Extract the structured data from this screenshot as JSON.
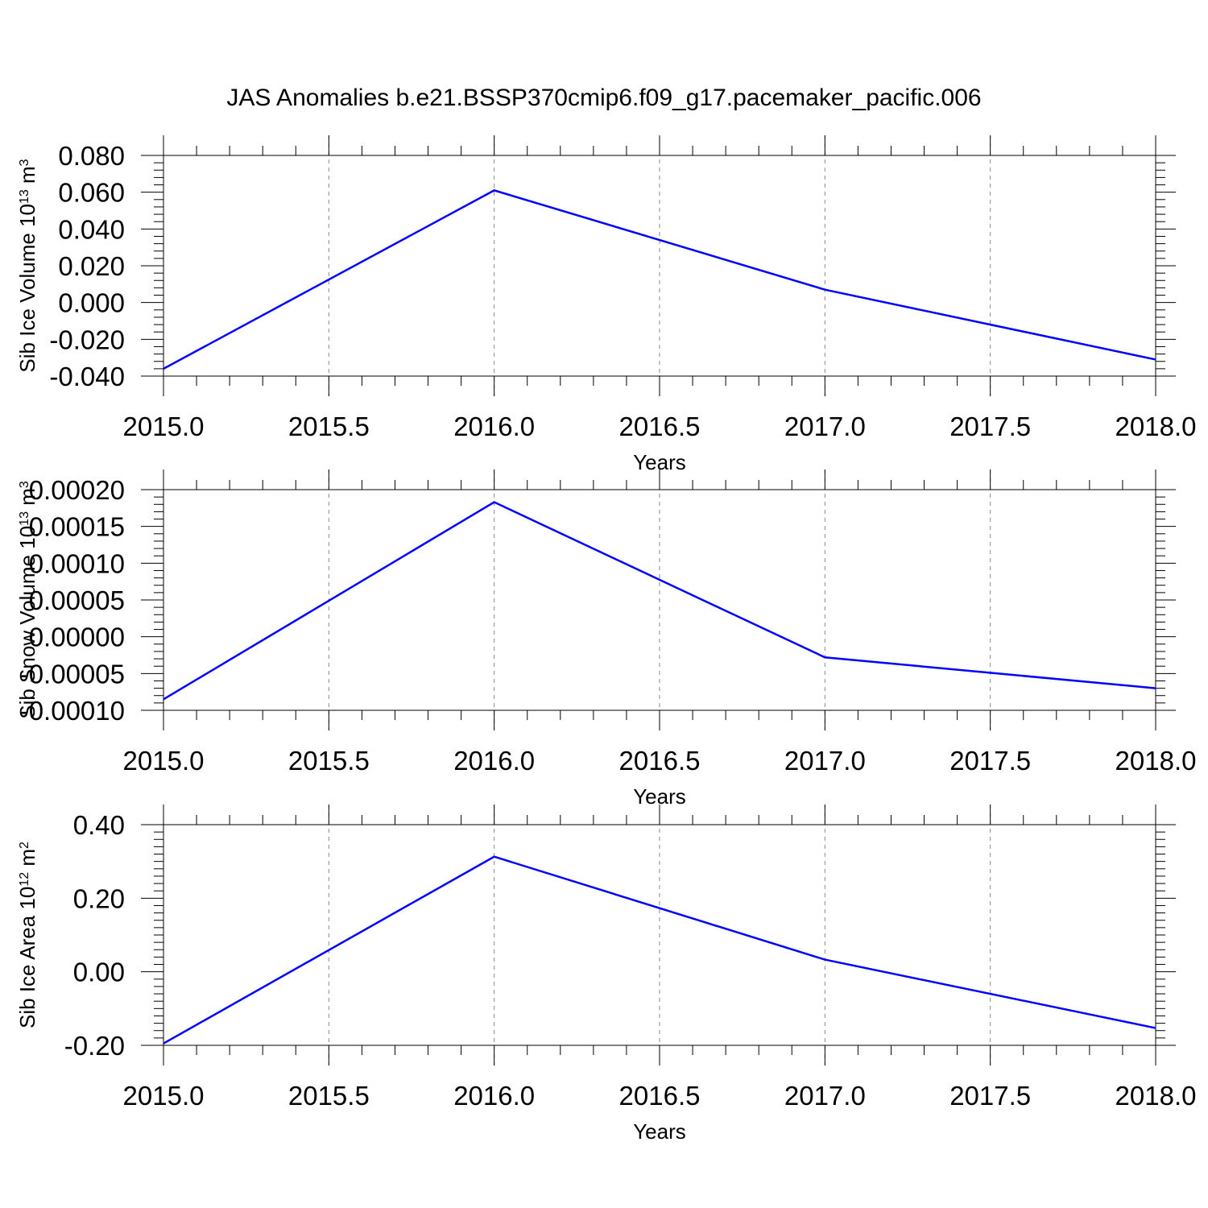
{
  "title": "JAS Anomalies b.e21.BSSP370cmip6.f09_g17.pacemaker_pacific.006",
  "colors": {
    "series": "#0000ff",
    "axis": "#000000",
    "grid": "#888888"
  },
  "chart_data": [
    {
      "type": "line",
      "ylabel_main": "Sib Ice Volume 10",
      "ylabel_exp": "13",
      "ylabel_unit": " m",
      "ylabel_unit_exp": "3",
      "xlabel": "Years",
      "xlim": [
        2015.0,
        2018.0
      ],
      "ylim": [
        -0.04,
        0.08
      ],
      "x_ticks": [
        "2015.0",
        "2015.5",
        "2016.0",
        "2016.5",
        "2017.0",
        "2017.5",
        "2018.0"
      ],
      "y_ticks": [
        "-0.040",
        "-0.020",
        "0.000",
        "0.020",
        "0.040",
        "0.060",
        "0.080"
      ],
      "x": [
        2015,
        2016,
        2017,
        2018
      ],
      "values": [
        -0.036,
        0.061,
        0.007,
        -0.031
      ]
    },
    {
      "type": "line",
      "ylabel_main": "Sib Snow Volume 10",
      "ylabel_exp": "13",
      "ylabel_unit": " m",
      "ylabel_unit_exp": "3",
      "xlabel": "Years",
      "xlim": [
        2015.0,
        2018.0
      ],
      "ylim": [
        -0.0001,
        0.0002
      ],
      "x_ticks": [
        "2015.0",
        "2015.5",
        "2016.0",
        "2016.5",
        "2017.0",
        "2017.5",
        "2018.0"
      ],
      "y_ticks": [
        "-0.00010",
        "-0.00005",
        "0.00000",
        "0.00005",
        "0.00010",
        "0.00015",
        "0.00020"
      ],
      "x": [
        2015,
        2016,
        2017,
        2018
      ],
      "values": [
        -8.5e-05,
        0.000183,
        -2.8e-05,
        -7e-05
      ]
    },
    {
      "type": "line",
      "ylabel_main": "Sib Ice Area 10",
      "ylabel_exp": "12",
      "ylabel_unit": " m",
      "ylabel_unit_exp": "2",
      "xlabel": "Years",
      "xlim": [
        2015.0,
        2018.0
      ],
      "ylim": [
        -0.2,
        0.4
      ],
      "x_ticks": [
        "2015.0",
        "2015.5",
        "2016.0",
        "2016.5",
        "2017.0",
        "2017.5",
        "2018.0"
      ],
      "y_ticks": [
        "-0.20",
        "0.00",
        "0.20",
        "0.40"
      ],
      "x": [
        2015,
        2016,
        2017,
        2018
      ],
      "values": [
        -0.195,
        0.313,
        0.033,
        -0.153
      ]
    }
  ]
}
